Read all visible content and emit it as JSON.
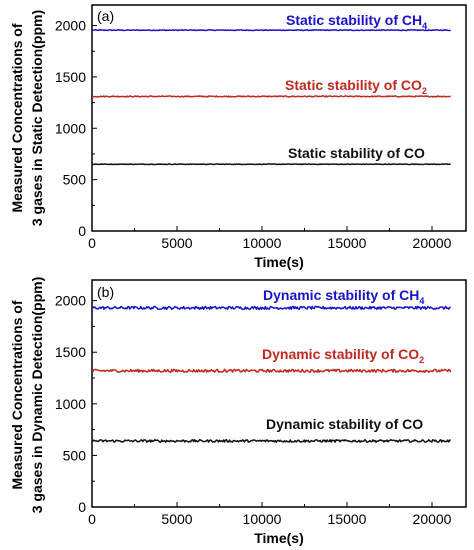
{
  "colors": {
    "ch4": "#1a12c8",
    "co2": "#c0291e",
    "co": "#111111"
  },
  "chart_data": [
    {
      "type": "line",
      "panel_label": "(a)",
      "xlabel": "Time(s)",
      "ylabel_lines": [
        "Measured Concentrations of",
        "3 gases in Static Detection(ppm)"
      ],
      "xlim": [
        0,
        22000
      ],
      "ylim": [
        0,
        2200
      ],
      "xticks": [
        0,
        5000,
        10000,
        15000,
        20000
      ],
      "xtick_labels": [
        "0",
        "5000",
        "10000",
        "15000",
        "20000"
      ],
      "yticks": [
        0,
        500,
        1000,
        1500,
        2000
      ],
      "ytick_labels": [
        "0",
        "500",
        "1000",
        "1500",
        "2000"
      ],
      "annotations": [
        {
          "text": "Static stability of CH",
          "sub": "4",
          "color_key": "ch4"
        },
        {
          "text": "Static stability of CO",
          "sub": "2",
          "color_key": "co2"
        },
        {
          "text": "Static stability of CO",
          "sub": "",
          "color_key": "co"
        }
      ],
      "series": [
        {
          "x_range": [
            0,
            21100
          ],
          "mean": 1955,
          "noise": 4,
          "color_key": "ch4"
        },
        {
          "x_range": [
            0,
            21100
          ],
          "mean": 1310,
          "noise": 5,
          "color_key": "co2"
        },
        {
          "x_range": [
            0,
            21100
          ],
          "mean": 650,
          "noise": 3,
          "color_key": "co"
        }
      ]
    },
    {
      "type": "line",
      "panel_label": "(b)",
      "xlabel": "Time(s)",
      "ylabel_lines": [
        "Measured Concentrations of",
        "3 gases in Dynamic Detection(ppm)"
      ],
      "xlim": [
        0,
        22000
      ],
      "ylim": [
        0,
        2200
      ],
      "xticks": [
        0,
        5000,
        10000,
        15000,
        20000
      ],
      "xtick_labels": [
        "0",
        "5000",
        "10000",
        "15000",
        "20000"
      ],
      "yticks": [
        0,
        500,
        1000,
        1500,
        2000
      ],
      "ytick_labels": [
        "0",
        "500",
        "1000",
        "1500",
        "2000"
      ],
      "annotations": [
        {
          "text": "Dynamic stability of CH",
          "sub": "4",
          "color_key": "ch4"
        },
        {
          "text": "Dynamic stability of CO",
          "sub": "2",
          "color_key": "co2"
        },
        {
          "text": "Dynamic stability of CO",
          "sub": "",
          "color_key": "co"
        }
      ],
      "series": [
        {
          "x_range": [
            0,
            21100
          ],
          "mean": 1930,
          "noise": 14,
          "color_key": "ch4"
        },
        {
          "x_range": [
            0,
            21100
          ],
          "mean": 1320,
          "noise": 14,
          "color_key": "co2"
        },
        {
          "x_range": [
            0,
            21100
          ],
          "mean": 640,
          "noise": 12,
          "color_key": "co"
        }
      ]
    }
  ]
}
